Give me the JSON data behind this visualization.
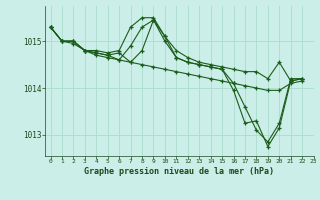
{
  "background_color": "#cceee8",
  "grid_color": "#aaddcc",
  "line_color": "#1a5c1a",
  "marker_color": "#1a5c1a",
  "title": "Graphe pression niveau de la mer (hPa)",
  "xlim": [
    -0.5,
    23
  ],
  "ylim": [
    1012.55,
    1015.75
  ],
  "yticks": [
    1013,
    1014,
    1015
  ],
  "xticks": [
    0,
    1,
    2,
    3,
    4,
    5,
    6,
    7,
    8,
    9,
    10,
    11,
    12,
    13,
    14,
    15,
    16,
    17,
    18,
    19,
    20,
    21,
    22,
    23
  ],
  "series": [
    [
      1015.3,
      1015.0,
      1015.0,
      1014.8,
      1014.8,
      1014.75,
      1014.8,
      1015.3,
      1015.5,
      1015.5,
      1015.1,
      1014.8,
      1014.65,
      1014.55,
      1014.5,
      1014.45,
      1014.4,
      1014.35,
      1014.35,
      1014.2,
      1014.55,
      1014.15,
      1014.2
    ],
    [
      1015.3,
      1015.0,
      1015.0,
      1014.8,
      1014.75,
      1014.7,
      1014.6,
      1014.9,
      1015.3,
      1015.45,
      1015.0,
      1014.65,
      1014.55,
      1014.5,
      1014.45,
      1014.4,
      1014.1,
      1013.6,
      1013.1,
      1012.85,
      1013.25,
      1014.2,
      1014.2
    ],
    [
      1015.3,
      1015.0,
      1015.0,
      1014.8,
      1014.75,
      1014.7,
      1014.75,
      1014.55,
      1014.8,
      1015.45,
      1015.1,
      1014.65,
      1014.55,
      1014.5,
      1014.45,
      1014.4,
      1013.95,
      1013.25,
      1013.3,
      1012.75,
      1013.15,
      1014.15,
      1014.2
    ],
    [
      1015.3,
      1015.0,
      1014.95,
      1014.8,
      1014.7,
      1014.65,
      1014.6,
      1014.55,
      1014.5,
      1014.45,
      1014.4,
      1014.35,
      1014.3,
      1014.25,
      1014.2,
      1014.15,
      1014.1,
      1014.05,
      1014.0,
      1013.95,
      1013.95,
      1014.1,
      1014.15
    ]
  ]
}
